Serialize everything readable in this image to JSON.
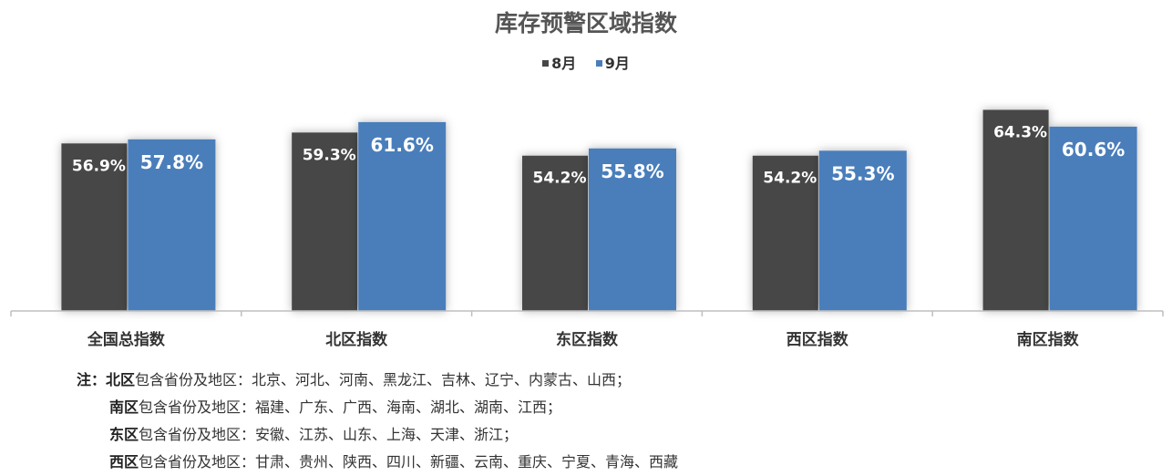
{
  "chart_data": {
    "type": "bar",
    "title": "库存预警区域指数",
    "categories": [
      "全国总指数",
      "北区指数",
      "东区指数",
      "西区指数",
      "南区指数"
    ],
    "series": [
      {
        "name": "8月",
        "color": "#474747",
        "values": [
          56.9,
          59.3,
          54.2,
          54.2,
          64.3
        ],
        "labels": [
          "56.9%",
          "59.3%",
          "54.2%",
          "54.2%",
          "64.3%"
        ]
      },
      {
        "name": "9月",
        "color": "#4a7ebb",
        "values": [
          57.8,
          61.6,
          55.8,
          55.3,
          60.6
        ],
        "labels": [
          "57.8%",
          "61.6%",
          "55.8%",
          "55.3%",
          "60.6%"
        ]
      }
    ],
    "value_unit": "%",
    "ylim": [
      20,
      66
    ],
    "grid": false,
    "legend": "top-center",
    "legend_markers": [
      "■",
      "■"
    ]
  },
  "notes": {
    "prefix": "注：",
    "items": [
      {
        "region": "北区",
        "text": "包含省份及地区：北京、河北、河南、黑龙江、吉林、辽宁、内蒙古、山西；"
      },
      {
        "region": "南区",
        "text": "包含省份及地区：福建、广东、广西、海南、湖北、湖南、江西；"
      },
      {
        "region": "东区",
        "text": "包含省份及地区：安徽、江苏、山东、上海、天津、浙江；"
      },
      {
        "region": "西区",
        "text": "包含省份及地区：甘肃、贵州、陕西、四川、新疆、云南、重庆、宁夏、青海、西藏"
      }
    ]
  }
}
